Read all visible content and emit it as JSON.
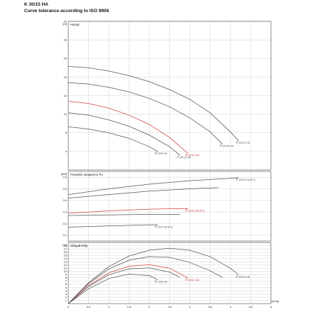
{
  "header": {
    "title": "K 30/15 HA",
    "subtitle": "Curve tolerance according to ISO 9906"
  },
  "chart_data": [
    {
      "type": "line",
      "title": "Напор",
      "ylabel": "[m]",
      "xlim": [
        0,
        5
      ],
      "ylim": [
        0,
        32
      ],
      "yticks": [
        4,
        8,
        12,
        16,
        20,
        24,
        28,
        32
      ],
      "grid": true,
      "series": [
        {
          "name": "K 40/22 HA",
          "color": "#555555",
          "x": [
            0,
            0.5,
            1,
            1.5,
            2,
            2.5,
            3,
            3.5,
            4,
            4.2
          ],
          "y": [
            22.3,
            22.0,
            21.3,
            20.3,
            19.0,
            17.3,
            15.2,
            12.3,
            8.2,
            6.3
          ]
        },
        {
          "name": "K 40/18 HA",
          "color": "#555555",
          "x": [
            0,
            0.5,
            1,
            1.5,
            2,
            2.5,
            3,
            3.5,
            3.8
          ],
          "y": [
            18.8,
            18.5,
            17.8,
            16.8,
            15.4,
            13.6,
            11.2,
            8.2,
            5.6
          ]
        },
        {
          "name": "K 30/15 HA",
          "color": "#d04040",
          "x": [
            0,
            0.5,
            1,
            1.5,
            2,
            2.5,
            2.95
          ],
          "y": [
            14.8,
            14.3,
            13.3,
            11.8,
            9.8,
            7.0,
            3.6
          ]
        },
        {
          "name": "K 30/12 HA",
          "color": "#555555",
          "x": [
            0,
            0.5,
            1,
            1.5,
            2,
            2.5,
            2.75
          ],
          "y": [
            12.3,
            11.8,
            10.8,
            9.4,
            7.5,
            5.0,
            3.2
          ]
        },
        {
          "name": "K 20/9 HA",
          "color": "#555555",
          "x": [
            0,
            0.5,
            1,
            1.5,
            2,
            2.2
          ],
          "y": [
            9.3,
            8.8,
            8.0,
            6.8,
            5.0,
            4.0
          ]
        }
      ]
    },
    {
      "type": "line",
      "title": "Потребл. мощность P1",
      "ylabel": "[kW]",
      "xlim": [
        0,
        5
      ],
      "ylim": [
        0.05,
        0.65
      ],
      "yticks": [
        0.1,
        0.2,
        0.3,
        0.4,
        0.5,
        0.6
      ],
      "grid": true,
      "series": [
        {
          "name": "K 40/22 HA (P1)",
          "color": "#555555",
          "x": [
            0,
            1,
            2,
            3,
            4,
            4.2
          ],
          "y": [
            0.45,
            0.5,
            0.54,
            0.57,
            0.59,
            0.595
          ]
        },
        {
          "name": "",
          "color": "#555555",
          "x": [
            0,
            1,
            2,
            3,
            3.7
          ],
          "y": [
            0.42,
            0.45,
            0.48,
            0.5,
            0.51
          ]
        },
        {
          "name": "K 30/15 HA (P1)",
          "color": "#d04040",
          "x": [
            0,
            1,
            2,
            2.95
          ],
          "y": [
            0.29,
            0.31,
            0.325,
            0.33
          ]
        },
        {
          "name": "",
          "color": "#555555",
          "x": [
            0,
            1,
            2,
            2.75
          ],
          "y": [
            0.27,
            0.275,
            0.28,
            0.28
          ]
        },
        {
          "name": "K 20/9 HA (P1)",
          "color": "#555555",
          "x": [
            0,
            1,
            2,
            2.2
          ],
          "y": [
            0.17,
            0.18,
            0.19,
            0.19
          ]
        }
      ]
    },
    {
      "type": "line",
      "title": "Общий КПД",
      "ylabel": "[%]",
      "xlabel": "[m³/h]",
      "xlim": [
        0,
        5
      ],
      "ylim": [
        0,
        19
      ],
      "yticks": [
        1,
        2,
        3,
        4,
        5,
        6,
        7,
        8,
        9,
        10,
        11,
        12,
        13,
        14,
        15,
        16,
        17,
        18
      ],
      "xticks": [
        0,
        0.5,
        1,
        1.5,
        2,
        2.5,
        3,
        3.5,
        4,
        4.5,
        5
      ],
      "xticklabels": [
        "0",
        "0.5",
        "1",
        "1.5",
        "2",
        "2.5",
        "3",
        "3.5",
        "4",
        "4.5",
        "5"
      ],
      "grid": true,
      "series": [
        {
          "name": "K 40/22 HA",
          "color": "#555555",
          "x": [
            0,
            0.5,
            1,
            1.5,
            2,
            2.5,
            3,
            3.5,
            4,
            4.2
          ],
          "y": [
            0,
            6.5,
            11.5,
            14.8,
            16.6,
            17.2,
            16.6,
            14.6,
            11.0,
            9.0
          ]
        },
        {
          "name": "",
          "color": "#555555",
          "x": [
            0,
            0.5,
            1,
            1.5,
            2,
            2.5,
            3,
            3.5,
            3.8
          ],
          "y": [
            0,
            6.2,
            10.8,
            13.5,
            14.6,
            14.4,
            12.8,
            10.2,
            8.2
          ]
        },
        {
          "name": "K 30/15 HA",
          "color": "#d04040",
          "x": [
            0,
            0.5,
            1,
            1.5,
            2,
            2.5,
            2.95
          ],
          "y": [
            0,
            5.6,
            9.6,
            11.6,
            12.1,
            11.0,
            8.0
          ]
        },
        {
          "name": "",
          "color": "#555555",
          "x": [
            0,
            0.5,
            1,
            1.5,
            2,
            2.5,
            2.75
          ],
          "y": [
            0,
            5.3,
            9.0,
            10.8,
            11.1,
            9.8,
            8.2
          ]
        },
        {
          "name": "K 20/9 HA",
          "color": "#555555",
          "x": [
            0,
            0.5,
            1,
            1.5,
            2,
            2.2
          ],
          "y": [
            0,
            4.6,
            7.8,
            9.2,
            8.7,
            7.5
          ]
        }
      ]
    }
  ]
}
